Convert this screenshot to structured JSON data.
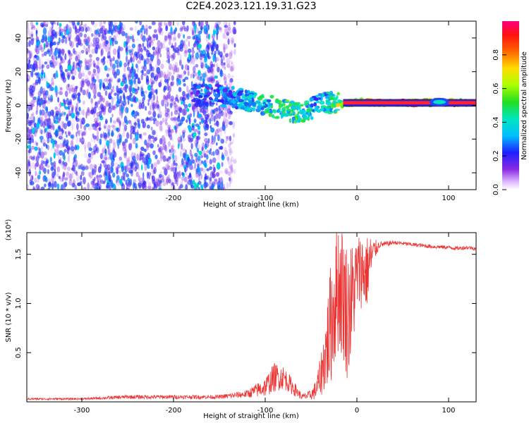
{
  "title": "C2E4.2023.121.19.31.G23",
  "chart_data": [
    {
      "type": "heatmap",
      "xlabel": "Height of straight line (km)",
      "ylabel": "Frequency (Hz)",
      "xlim": [
        -360,
        130
      ],
      "ylim": [
        -50,
        50
      ],
      "xticks": [
        -300,
        -200,
        -100,
        0,
        100
      ],
      "yticks": [
        -40,
        -20,
        0,
        20,
        40
      ],
      "colorbar": {
        "label": "Normalized spectral amplitude",
        "range": [
          0,
          1
        ],
        "ticks": [
          "0.0",
          "0.2",
          "0.4",
          "0.6",
          "0.8"
        ],
        "colormap": "rainbow"
      },
      "features": {
        "noise_region_x": [
          -360,
          -145
        ],
        "noise_level": 0.25,
        "ridge": [
          {
            "x": -180,
            "f": 6,
            "amp": 0.25
          },
          {
            "x": -150,
            "f": 6,
            "amp": 0.3
          },
          {
            "x": -130,
            "f": 4,
            "amp": 0.35
          },
          {
            "x": -110,
            "f": 2,
            "amp": 0.45
          },
          {
            "x": -90,
            "f": -1,
            "amp": 0.5
          },
          {
            "x": -70,
            "f": -4,
            "amp": 0.55
          },
          {
            "x": -55,
            "f": -4,
            "amp": 0.5
          },
          {
            "x": -45,
            "f": 0,
            "amp": 0.4
          },
          {
            "x": -30,
            "f": 2,
            "amp": 0.5
          },
          {
            "x": -15,
            "f": 1,
            "amp": 0.8
          },
          {
            "x": 0,
            "f": 2,
            "amp": 0.9
          },
          {
            "x": 20,
            "f": 1.5,
            "amp": 1.0
          },
          {
            "x": 60,
            "f": 1.5,
            "amp": 1.0
          },
          {
            "x": 90,
            "f": 2,
            "amp": 1.0
          },
          {
            "x": 130,
            "f": 1.5,
            "amp": 1.0
          }
        ]
      }
    },
    {
      "type": "line",
      "xlabel": "Height of straight line (km)",
      "ylabel": "SNR (10 * v/v)",
      "scale_label": "(x10⁴)",
      "xlim": [
        -360,
        130
      ],
      "ylim": [
        0,
        1.72
      ],
      "xticks": [
        -300,
        -200,
        -100,
        0,
        100
      ],
      "yticks": [
        0.5,
        1.0,
        1.5
      ],
      "ytick_labels": [
        "0.5",
        "1.0",
        "1.5"
      ],
      "color": "#ee3333",
      "series": [
        {
          "x": [
            -360,
            -300,
            -250,
            -200,
            -150,
            -120,
            -100,
            -90,
            -80,
            -70,
            -60,
            -50,
            -45,
            -40,
            -35,
            -30,
            -25,
            -20,
            -15,
            -10,
            -5,
            0,
            5,
            10,
            15,
            20,
            25,
            30,
            40,
            60,
            80,
            100,
            110,
            120,
            130
          ],
          "values": [
            0.03,
            0.03,
            0.05,
            0.05,
            0.05,
            0.08,
            0.15,
            0.25,
            0.25,
            0.15,
            0.05,
            0.07,
            0.12,
            0.25,
            0.45,
            0.7,
            1.0,
            1.2,
            1.1,
            0.9,
            1.05,
            1.3,
            1.35,
            1.3,
            1.45,
            1.55,
            1.6,
            1.6,
            1.62,
            1.6,
            1.58,
            1.57,
            1.56,
            1.57,
            1.56
          ],
          "jitter": [
            0.01,
            0.01,
            0.02,
            0.02,
            0.02,
            0.04,
            0.1,
            0.15,
            0.12,
            0.08,
            0.03,
            0.05,
            0.1,
            0.2,
            0.35,
            0.6,
            0.7,
            0.7,
            0.7,
            0.7,
            0.6,
            0.4,
            0.4,
            0.4,
            0.25,
            0.1,
            0.03,
            0.03,
            0.02,
            0.02,
            0.02,
            0.02,
            0.02,
            0.02,
            0.02
          ]
        }
      ]
    }
  ]
}
